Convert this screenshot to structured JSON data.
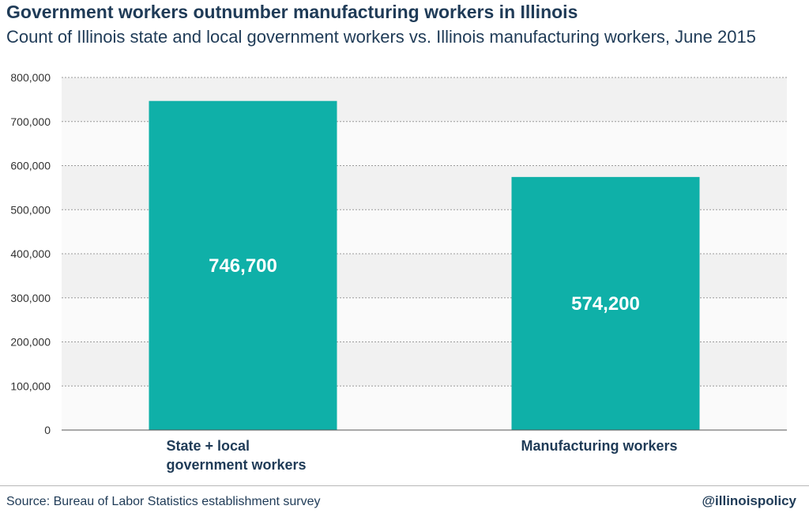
{
  "title": "Government workers outnumber manufacturing workers in Illinois",
  "subtitle": "Count of Illinois state and local government workers vs. Illinois manufacturing workers, June 2015",
  "source": "Source: Bureau of Labor Statistics establishment survey",
  "handle": "@illinoispolicy",
  "chart_data": {
    "type": "bar",
    "categories": [
      [
        "State + local",
        "government workers"
      ],
      [
        "Manufacturing workers"
      ]
    ],
    "values": [
      746700,
      574200
    ],
    "value_labels": [
      "746,700",
      "574,200"
    ],
    "xlabel": "",
    "ylabel": "",
    "ylim": [
      0,
      800000
    ],
    "yticks": [
      0,
      100000,
      200000,
      300000,
      400000,
      500000,
      600000,
      700000,
      800000
    ],
    "ytick_labels": [
      "0",
      "100,000",
      "200,000",
      "300,000",
      "400,000",
      "500,000",
      "600,000",
      "700,000",
      "800,000"
    ],
    "grid": true,
    "bar_color": "#0fb0a8",
    "band_colors": [
      "#f1f1f1",
      "#fafafa"
    ]
  }
}
